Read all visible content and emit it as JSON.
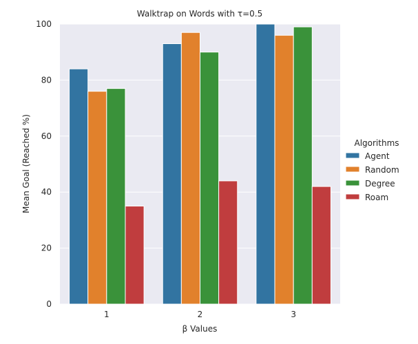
{
  "chart_data": {
    "type": "bar",
    "title": "Walktrap on Words with τ=0.5",
    "xlabel": "β Values",
    "ylabel": "Mean Goal (Reached %)",
    "categories": [
      "1",
      "2",
      "3"
    ],
    "ylim": [
      0,
      100
    ],
    "yticks": [
      "0",
      "20",
      "40",
      "60",
      "80",
      "100"
    ],
    "grid": true,
    "legend_title": "Algorithms",
    "legend_position": "right",
    "series": [
      {
        "name": "Agent",
        "color": "#3274a1",
        "values": [
          84,
          93,
          100
        ]
      },
      {
        "name": "Random",
        "color": "#e1812c",
        "values": [
          76,
          97,
          96
        ]
      },
      {
        "name": "Degree",
        "color": "#3a923a",
        "values": [
          77,
          90,
          99
        ]
      },
      {
        "name": "Roam",
        "color": "#c03d3e",
        "values": [
          35,
          44,
          42
        ]
      }
    ]
  }
}
